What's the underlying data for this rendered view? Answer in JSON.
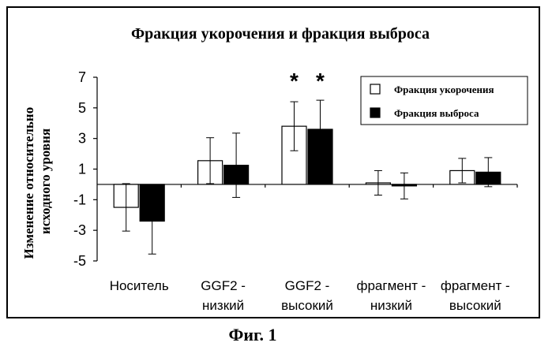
{
  "figure": {
    "caption": "Фиг. 1"
  },
  "chart_data": {
    "type": "bar",
    "title": "Фракция укорочения и фракция выброса",
    "ylabel": "Изменение относительно исходного уровня",
    "ylabel_lines": [
      "Изменение относительно",
      "исходного уровня"
    ],
    "xlabel": "",
    "ylim": [
      -5,
      7
    ],
    "yticks": [
      7,
      5,
      3,
      1,
      -1,
      -3,
      -5
    ],
    "ytick_labels": [
      "7",
      "5",
      "3",
      "1",
      "-1",
      "-3",
      "-5"
    ],
    "grid": false,
    "legend_position": "top-right",
    "categories": [
      [
        "Носитель",
        ""
      ],
      [
        "GGF2 -",
        "низкий"
      ],
      [
        "GGF2 -",
        "высокий"
      ],
      [
        "фрагмент -",
        "низкий"
      ],
      [
        "фрагмент -",
        "высокий"
      ]
    ],
    "series": [
      {
        "name": "Фракция укорочения",
        "color": "#ffffff",
        "values": [
          -1.5,
          1.55,
          3.8,
          0.1,
          0.9
        ],
        "errors": [
          1.55,
          1.5,
          1.6,
          0.8,
          0.8
        ]
      },
      {
        "name": "Фракция выброса",
        "color": "#000000",
        "values": [
          -2.4,
          1.25,
          3.6,
          -0.1,
          0.8
        ],
        "errors": [
          2.15,
          2.1,
          1.9,
          0.85,
          0.95
        ]
      }
    ],
    "annotations": [
      {
        "text": "*",
        "category": 2,
        "series": 0
      },
      {
        "text": "*",
        "category": 2,
        "series": 1
      }
    ]
  }
}
